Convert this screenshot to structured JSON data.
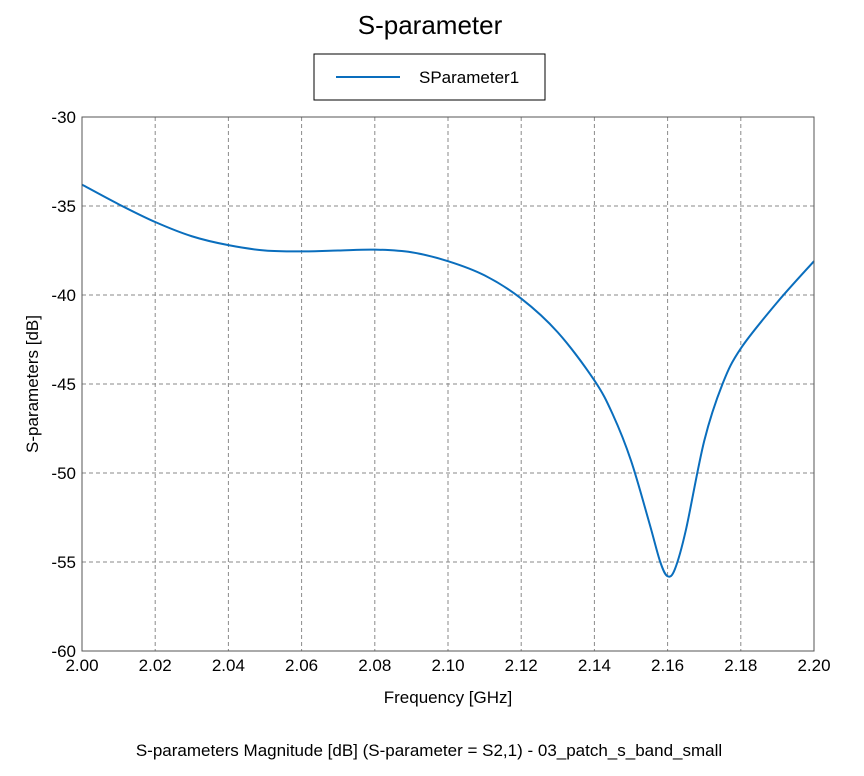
{
  "chart_data": {
    "type": "line",
    "title": "S-parameter",
    "xlabel": "Frequency [GHz]",
    "ylabel": "S-parameters [dB]",
    "caption": "S-parameters Magnitude [dB] (S-parameter = S2,1) - 03_patch_s_band_small",
    "xlim": [
      2.0,
      2.2
    ],
    "ylim": [
      -60,
      -30
    ],
    "xticks": [
      "2.00",
      "2.02",
      "2.04",
      "2.06",
      "2.08",
      "2.10",
      "2.12",
      "2.14",
      "2.16",
      "2.18",
      "2.20"
    ],
    "yticks": [
      "-30",
      "-35",
      "-40",
      "-45",
      "-50",
      "-55",
      "-60"
    ],
    "grid": true,
    "legend_position": "top-center",
    "series": [
      {
        "name": "SParameter1",
        "color": "#0a6ebd",
        "x": [
          2.0,
          2.01,
          2.02,
          2.03,
          2.04,
          2.05,
          2.06,
          2.07,
          2.08,
          2.09,
          2.1,
          2.11,
          2.12,
          2.13,
          2.14,
          2.145,
          2.15,
          2.155,
          2.158,
          2.16,
          2.162,
          2.165,
          2.17,
          2.175,
          2.18,
          2.19,
          2.2
        ],
        "y": [
          -33.8,
          -34.9,
          -35.9,
          -36.7,
          -37.2,
          -37.5,
          -37.55,
          -37.5,
          -37.45,
          -37.6,
          -38.1,
          -38.9,
          -40.2,
          -42.1,
          -44.8,
          -46.7,
          -49.3,
          -52.8,
          -55.0,
          -55.8,
          -55.4,
          -53.2,
          -48.2,
          -45.0,
          -43.0,
          -40.4,
          -38.1
        ]
      }
    ]
  }
}
